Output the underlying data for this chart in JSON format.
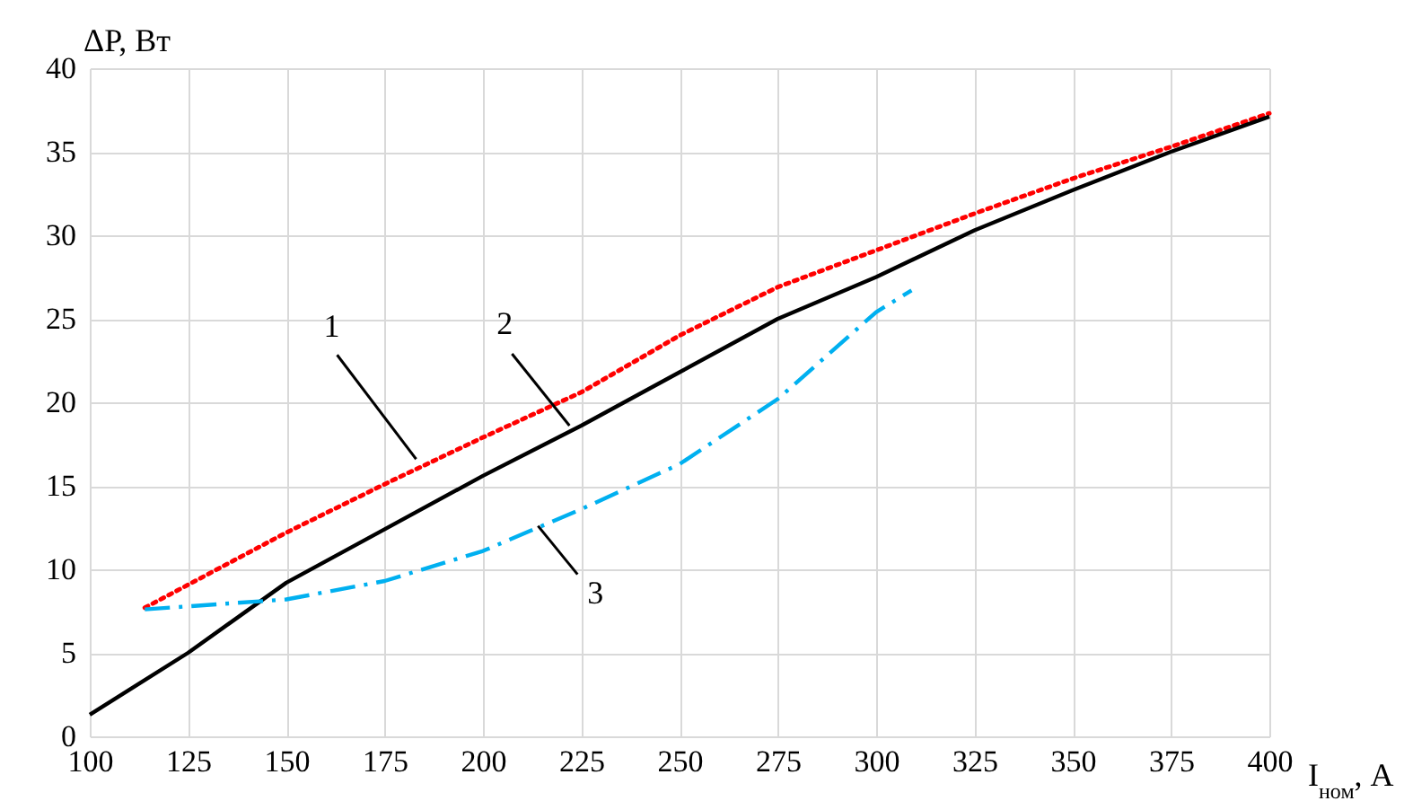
{
  "chart_data": {
    "type": "line",
    "xlabel": "I$_{ном}$, А",
    "ylabel": "ΔP, Вт",
    "xlim": [
      100,
      400
    ],
    "xticks": [
      100,
      125,
      150,
      175,
      200,
      225,
      250,
      275,
      300,
      325,
      350,
      375,
      400
    ],
    "ylim": [
      0,
      40
    ],
    "yticks": [
      0,
      5,
      10,
      15,
      20,
      25,
      30,
      35,
      40
    ],
    "grid": true,
    "series": [
      {
        "color": "#ff0000",
        "line_style": "dotted",
        "x": [
          114,
          150,
          175,
          200,
          225,
          250,
          275,
          300,
          325,
          350,
          375,
          400
        ],
        "values": [
          7.7,
          12.2,
          15.1,
          17.9,
          20.6,
          24.0,
          26.9,
          29.1,
          31.3,
          33.4,
          35.3,
          37.3
        ]
      },
      {
        "color": "#000000",
        "line_style": "solid",
        "x": [
          100,
          125,
          150,
          175,
          200,
          225,
          250,
          275,
          300,
          325,
          350,
          375,
          400
        ],
        "values": [
          1.3,
          5.0,
          9.2,
          12.4,
          15.6,
          18.6,
          21.8,
          25.0,
          27.5,
          30.3,
          32.7,
          35.0,
          37.1
        ]
      },
      {
        "color": "#00b0f0",
        "line_style": "dashed",
        "x": [
          114,
          150,
          175,
          200,
          225,
          250,
          275,
          300,
          309
        ],
        "values": [
          7.6,
          8.2,
          9.3,
          11.1,
          13.6,
          16.3,
          20.2,
          25.4,
          26.7
        ]
      }
    ],
    "annotations": [
      {
        "text": "1",
        "x": 183,
        "y": 16.6
      },
      {
        "text": "2",
        "x": 222,
        "y": 18.6
      },
      {
        "text": "3",
        "x": 214,
        "y": 12.6
      }
    ]
  }
}
